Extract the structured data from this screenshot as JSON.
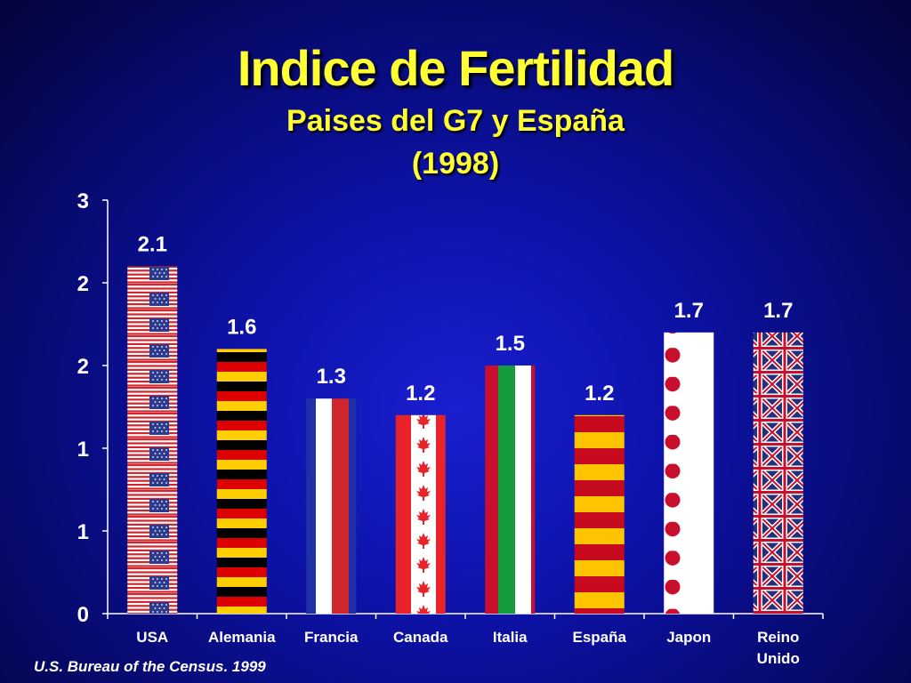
{
  "header": {
    "title": "Indice de Fertilidad",
    "subtitle_line1": "Paises del G7 y España",
    "subtitle_line2": "(1998)"
  },
  "footer": {
    "source": "U.S. Bureau of the Census. 1999"
  },
  "chart_data": {
    "type": "bar",
    "title": "Indice de Fertilidad",
    "subtitle": "Paises del G7 y España (1998)",
    "categories": [
      "USA",
      "Alemania",
      "Francia",
      "Canada",
      "Italia",
      "España",
      "Japon",
      "Reino Unido"
    ],
    "values": [
      2.1,
      1.6,
      1.3,
      1.2,
      1.5,
      1.2,
      1.7,
      1.7
    ],
    "value_labels": [
      "2.1",
      "1.6",
      "1.3",
      "1.2",
      "1.5",
      "1.2",
      "1.7",
      "1.7"
    ],
    "bar_patterns": [
      "us-flag",
      "germany-flag",
      "france-flag",
      "canada-flag",
      "italy-flag",
      "spain-flag",
      "japan-flag",
      "uk-flag"
    ],
    "y_tick_labels": [
      "0",
      "1",
      "1",
      "2",
      "2",
      "3"
    ],
    "ylim": [
      0,
      2.5
    ],
    "xlabel": "",
    "ylabel": "",
    "grid": false,
    "colors": {
      "axis": "#ffffff",
      "title": "#ffff33",
      "text": "#ffffff"
    }
  }
}
